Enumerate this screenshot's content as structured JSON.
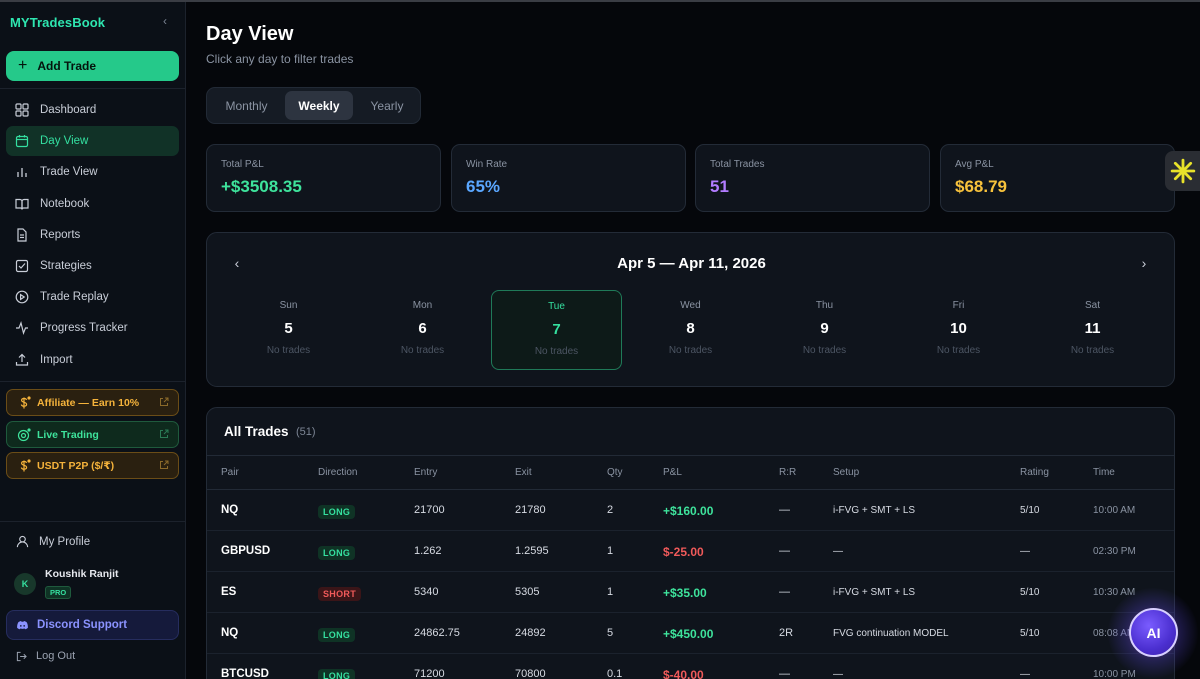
{
  "app": {
    "brand": "MYTradesBook",
    "collapse_glyph": "‹"
  },
  "sidebar": {
    "add_trade_label": "Add Trade",
    "items": [
      {
        "label": "Dashboard",
        "icon": "grid-icon"
      },
      {
        "label": "Day View",
        "icon": "calendar-icon",
        "active": true
      },
      {
        "label": "Trade View",
        "icon": "bar-chart-icon"
      },
      {
        "label": "Notebook",
        "icon": "book-icon"
      },
      {
        "label": "Reports",
        "icon": "file-icon"
      },
      {
        "label": "Strategies",
        "icon": "checkbox-icon"
      },
      {
        "label": "Trade Replay",
        "icon": "play-icon"
      },
      {
        "label": "Progress Tracker",
        "icon": "activity-icon"
      },
      {
        "label": "Import",
        "icon": "upload-icon"
      }
    ],
    "promos": {
      "affiliate": "Affiliate — Earn 10%",
      "live": "Live Trading",
      "usdt": "USDT P2P ($/₹)"
    },
    "profile_label": "My Profile",
    "user": {
      "initial": "K",
      "name": "Koushik Ranjit",
      "badge": "PRO"
    },
    "discord_label": "Discord Support",
    "logout_label": "Log Out"
  },
  "page": {
    "title": "Day View",
    "subtitle": "Click any day to filter trades"
  },
  "view_tabs": {
    "monthly": "Monthly",
    "weekly": "Weekly",
    "yearly": "Yearly",
    "selected": "Weekly"
  },
  "stats": {
    "total_pnl": {
      "label": "Total P&L",
      "value": "+$3508.35",
      "color": "#3ee39c"
    },
    "win_rate": {
      "label": "Win Rate",
      "value": "65%",
      "color": "#5aa7ff"
    },
    "total_trades": {
      "label": "Total Trades",
      "value": "51",
      "color": "#b27cff"
    },
    "avg_pnl": {
      "label": "Avg P&L",
      "value": "$68.79",
      "color": "#f7c23c"
    }
  },
  "week": {
    "range": "Apr 5 — Apr 11, 2026",
    "prev_glyph": "‹",
    "next_glyph": "›",
    "days": [
      {
        "name": "Sun",
        "date": "5",
        "trades": "No trades"
      },
      {
        "name": "Mon",
        "date": "6",
        "trades": "No trades"
      },
      {
        "name": "Tue",
        "date": "7",
        "trades": "No trades",
        "today": true
      },
      {
        "name": "Wed",
        "date": "8",
        "trades": "No trades"
      },
      {
        "name": "Thu",
        "date": "9",
        "trades": "No trades"
      },
      {
        "name": "Fri",
        "date": "10",
        "trades": "No trades"
      },
      {
        "name": "Sat",
        "date": "11",
        "trades": "No trades"
      }
    ]
  },
  "trades": {
    "title": "All Trades",
    "count": "(51)",
    "headers": {
      "pair": "Pair",
      "direction": "Direction",
      "entry": "Entry",
      "exit": "Exit",
      "qty": "Qty",
      "pnl": "P&L",
      "rr": "R:R",
      "setup": "Setup",
      "rating": "Rating",
      "time": "Time"
    },
    "rows": [
      {
        "pair": "NQ",
        "direction": "LONG",
        "entry": "21700",
        "exit": "21780",
        "qty": "2",
        "pnl": "+$160.00",
        "rr": "—",
        "setup": "i-FVG + SMT + LS",
        "rating": "5/10",
        "time": "10:00 AM"
      },
      {
        "pair": "GBPUSD",
        "direction": "LONG",
        "entry": "1.262",
        "exit": "1.2595",
        "qty": "1",
        "pnl": "$-25.00",
        "rr": "—",
        "setup": "—",
        "rating": "—",
        "time": "02:30 PM"
      },
      {
        "pair": "ES",
        "direction": "SHORT",
        "entry": "5340",
        "exit": "5305",
        "qty": "1",
        "pnl": "+$35.00",
        "rr": "—",
        "setup": "i-FVG + SMT + LS",
        "rating": "5/10",
        "time": "10:30 AM"
      },
      {
        "pair": "NQ",
        "direction": "LONG",
        "entry": "24862.75",
        "exit": "24892",
        "qty": "5",
        "pnl": "+$450.00",
        "rr": "2R",
        "setup": "FVG continuation MODEL",
        "rating": "5/10",
        "time": "08:08 AM"
      },
      {
        "pair": "BTCUSD",
        "direction": "LONG",
        "entry": "71200",
        "exit": "70800",
        "qty": "0.1",
        "pnl": "$-40.00",
        "rr": "—",
        "setup": "—",
        "rating": "—",
        "time": "10:00 PM"
      }
    ],
    "pnl_colors": {
      "positive": "#3ee39c",
      "negative": "#f05a5a"
    }
  },
  "assistant": {
    "label": "AI"
  }
}
